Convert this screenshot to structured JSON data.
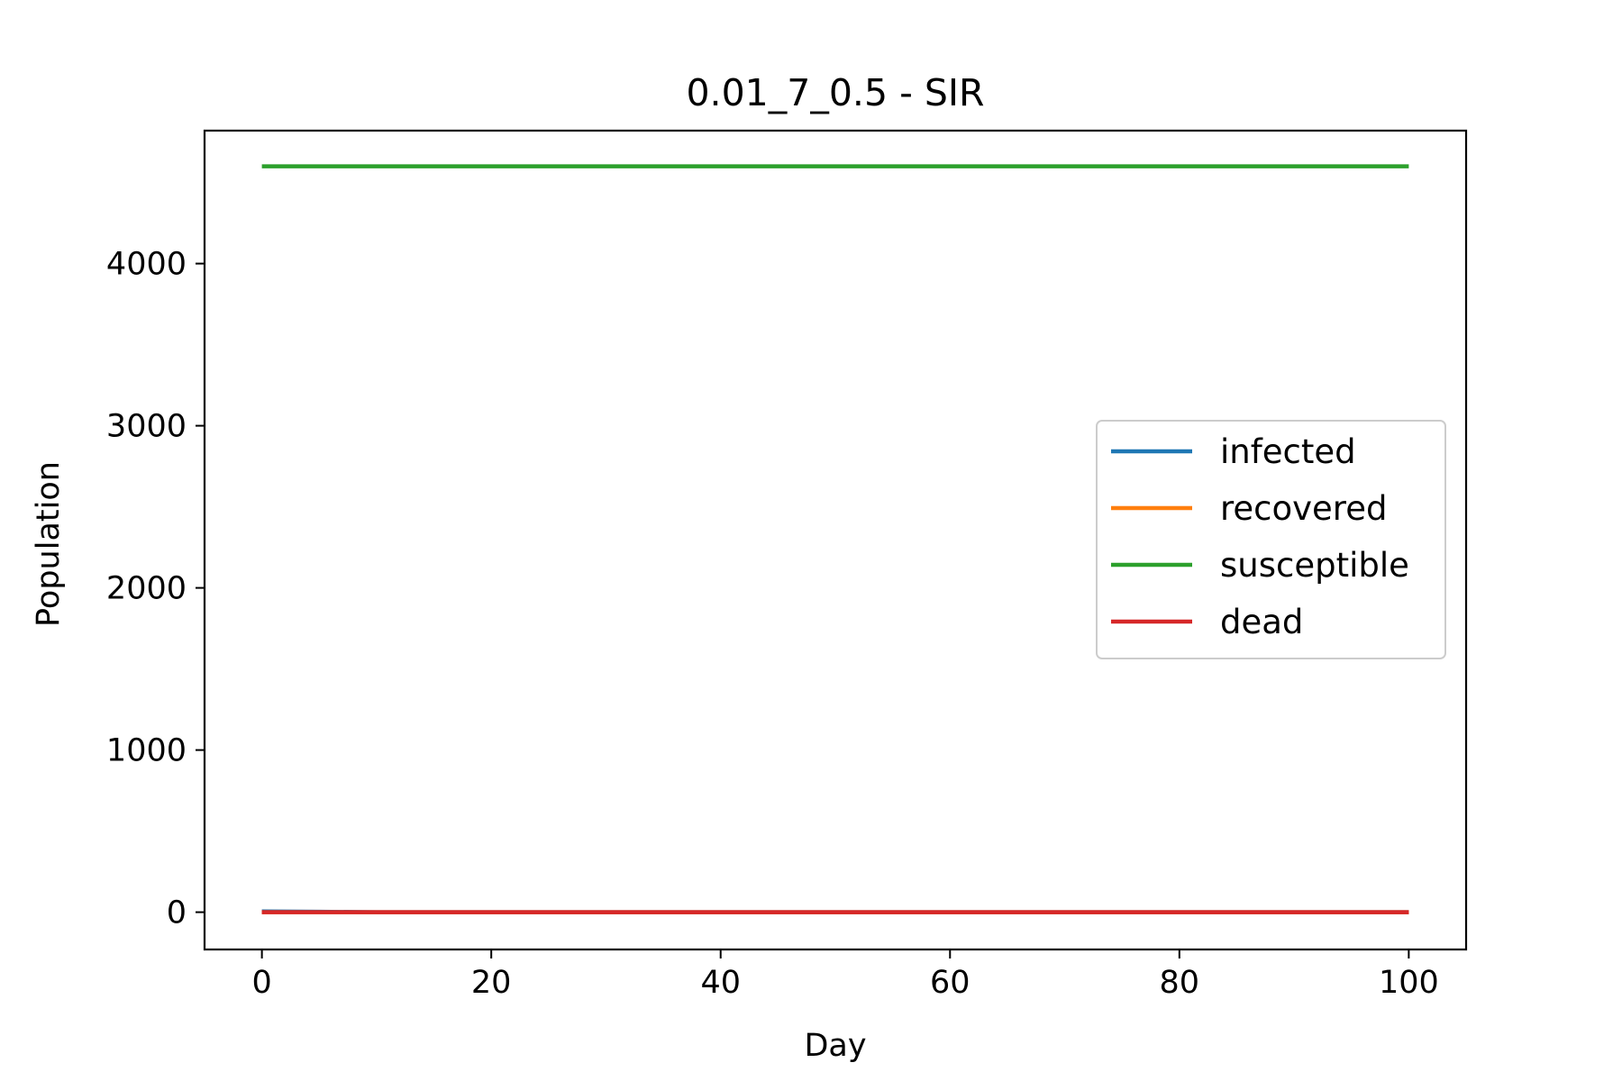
{
  "chart_data": {
    "type": "line",
    "title": "0.01_7_0.5 - SIR",
    "xlabel": "Day",
    "ylabel": "Population",
    "xlim": [
      -5,
      105
    ],
    "ylim": [
      -230,
      4820
    ],
    "xticks": [
      0,
      20,
      40,
      60,
      80,
      100
    ],
    "yticks": [
      0,
      1000,
      2000,
      3000,
      4000
    ],
    "grid": false,
    "legend_position": "center-right",
    "series": [
      {
        "name": "infected",
        "color": "#1f77b4",
        "x": [
          0,
          5,
          10,
          100
        ],
        "y": [
          5,
          3,
          0,
          0
        ]
      },
      {
        "name": "recovered",
        "color": "#ff7f0e",
        "x": [
          0,
          100
        ],
        "y": [
          0,
          0
        ]
      },
      {
        "name": "susceptible",
        "color": "#2ca02c",
        "x": [
          0,
          100
        ],
        "y": [
          4600,
          4600
        ]
      },
      {
        "name": "dead",
        "color": "#d62728",
        "x": [
          0,
          100
        ],
        "y": [
          0,
          0
        ]
      }
    ]
  }
}
